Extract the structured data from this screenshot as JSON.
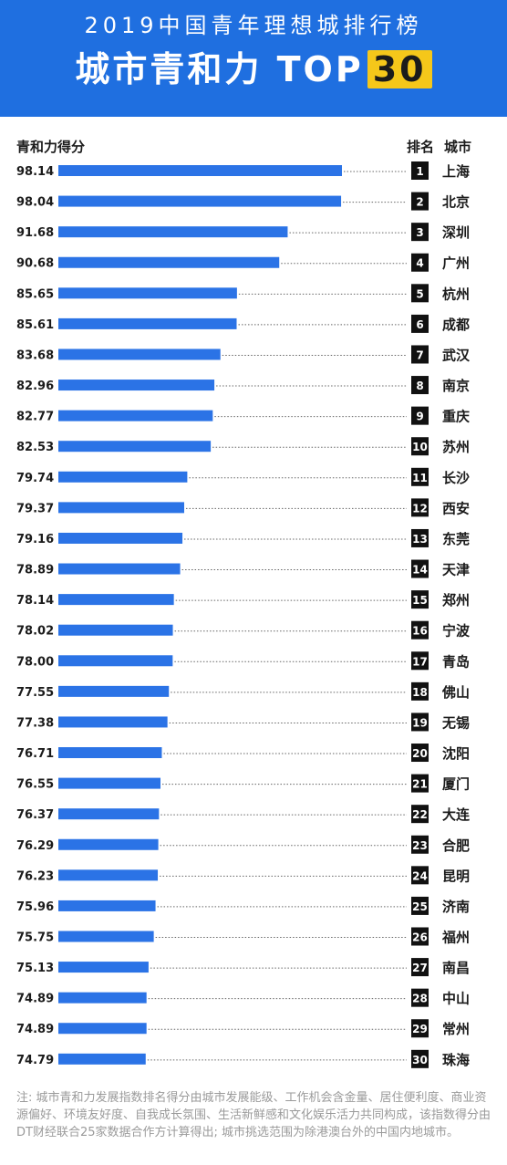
{
  "header": {
    "subtitle": "2019中国青年理想城排行榜",
    "title": "城市青和力 TOP",
    "badge": "30"
  },
  "columns": {
    "score": "青和力得分",
    "rank": "排名",
    "city": "城市"
  },
  "footnote": "注: 城市青和力发展指数排名得分由城市发展能级、工作机会含金量、居住便利度、商业资源偏好、环境友好度、自我成长氛围、生活新鲜感和文化娱乐活力共同构成，该指数得分由DT财经联合25家数据合作方计算得出; 城市挑选范围为除港澳台外的中国内地城市。",
  "colors": {
    "header_bg": "#1f6fe0",
    "bar": "#2b73e6",
    "badge": "#f5c71a",
    "rank_box": "#111111"
  },
  "chart_data": {
    "type": "bar",
    "orientation": "horizontal",
    "title": "城市青和力 TOP30",
    "subtitle": "2019中国青年理想城排行榜",
    "xlabel": "青和力得分",
    "ylabel": "排名 城市",
    "ranks": [
      1,
      2,
      3,
      4,
      5,
      6,
      7,
      8,
      9,
      10,
      11,
      12,
      13,
      14,
      15,
      16,
      17,
      18,
      19,
      20,
      21,
      22,
      23,
      24,
      25,
      26,
      27,
      28,
      29,
      30
    ],
    "categories": [
      "上海",
      "北京",
      "深圳",
      "广州",
      "杭州",
      "成都",
      "武汉",
      "南京",
      "重庆",
      "苏州",
      "长沙",
      "西安",
      "东莞",
      "天津",
      "郑州",
      "宁波",
      "青岛",
      "佛山",
      "无锡",
      "沈阳",
      "厦门",
      "大连",
      "合肥",
      "昆明",
      "济南",
      "福州",
      "南昌",
      "中山",
      "常州",
      "珠海"
    ],
    "values": [
      98.14,
      98.04,
      91.68,
      90.68,
      85.65,
      85.61,
      83.68,
      82.96,
      82.77,
      82.53,
      79.74,
      79.37,
      79.16,
      78.89,
      78.14,
      78.02,
      78.0,
      77.55,
      77.38,
      76.71,
      76.55,
      76.37,
      76.29,
      76.23,
      75.96,
      75.75,
      75.13,
      74.89,
      74.89,
      74.79
    ],
    "value_labels": [
      "98.14",
      "98.04",
      "91.68",
      "90.68",
      "85.65",
      "85.61",
      "83.68",
      "82.96",
      "82.77",
      "82.53",
      "79.74",
      "79.37",
      "79.16",
      "78.89",
      "78.14",
      "78.02",
      "78.00",
      "77.55",
      "77.38",
      "76.71",
      "76.55",
      "76.37",
      "76.29",
      "76.23",
      "75.96",
      "75.75",
      "75.13",
      "74.89",
      "74.89",
      "74.79"
    ],
    "grid": false,
    "legend": "none"
  }
}
